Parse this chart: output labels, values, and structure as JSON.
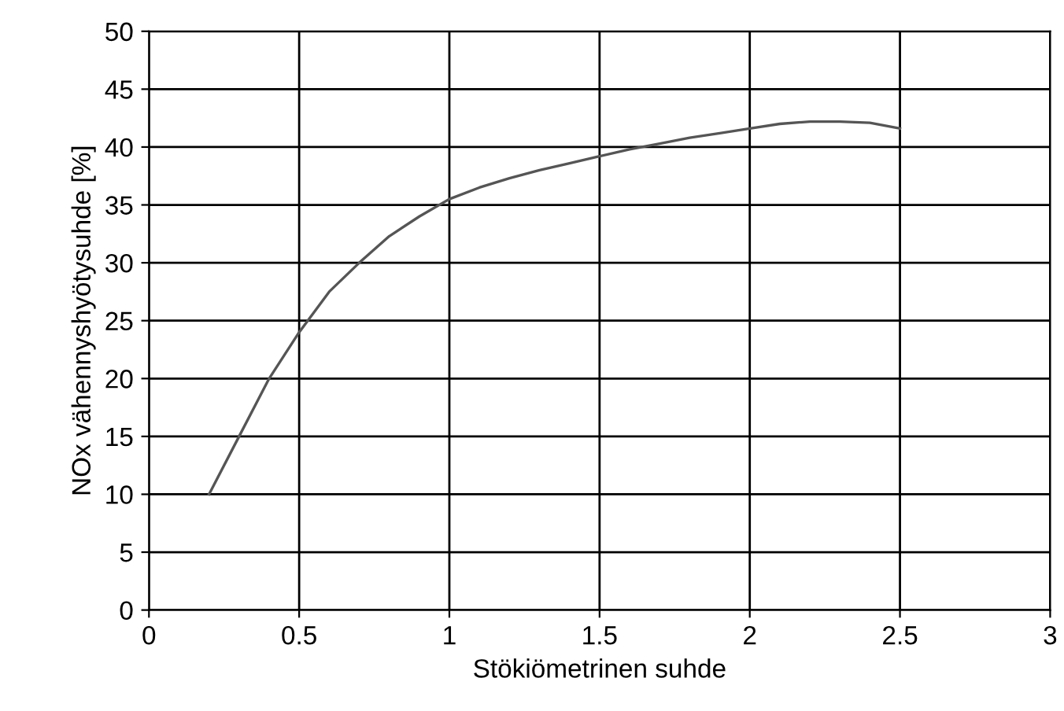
{
  "chart_data": {
    "type": "line",
    "xlabel": "Stökiömetrinen suhde",
    "ylabel": "NOx vähennyshyötysuhde [%]",
    "x": [
      0.2,
      0.3,
      0.4,
      0.5,
      0.6,
      0.7,
      0.8,
      0.9,
      1.0,
      1.1,
      1.2,
      1.3,
      1.4,
      1.5,
      1.6,
      1.7,
      1.8,
      1.9,
      2.0,
      2.1,
      2.2,
      2.3,
      2.4,
      2.5
    ],
    "series": [
      {
        "color": "#555555",
        "values": [
          10,
          15,
          20,
          24,
          27.5,
          30,
          32.3,
          34,
          35.5,
          36.5,
          37.3,
          38,
          38.6,
          39.2,
          39.8,
          40.3,
          40.8,
          41.2,
          41.6,
          42,
          42.2,
          42.2,
          42.1,
          41.6
        ]
      }
    ],
    "xlim": [
      0,
      3
    ],
    "xticks": [
      0,
      0.5,
      1,
      1.5,
      2,
      2.5,
      3
    ],
    "ylim": [
      0,
      50
    ],
    "yticks": [
      0,
      5,
      10,
      15,
      20,
      25,
      30,
      35,
      40,
      45,
      50
    ],
    "grid": true,
    "marker": "none",
    "line_style": "solid"
  }
}
